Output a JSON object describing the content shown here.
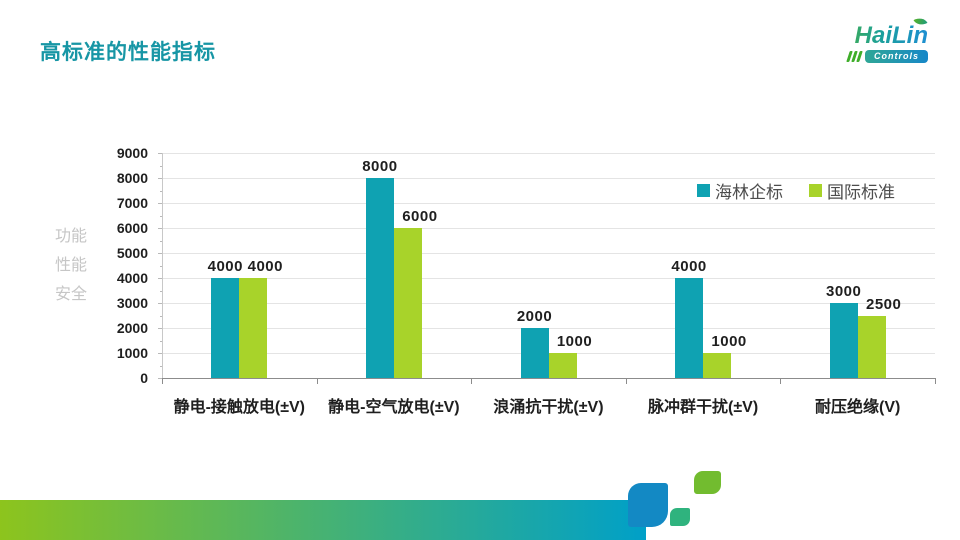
{
  "page": {
    "title": "高标准的性能指标"
  },
  "logo": {
    "name": "HaiLin",
    "sub": "Controls"
  },
  "chart_data": {
    "type": "bar",
    "title": "",
    "categories": [
      "静电-接触放电(±V)",
      "静电-空气放电(±V)",
      "浪涌抗干扰(±V)",
      "脉冲群干扰(±V)",
      "耐压绝缘(V)"
    ],
    "series": [
      {
        "name": "海林企标",
        "color": "#0FA2B2",
        "values": [
          4000,
          8000,
          2000,
          4000,
          3000
        ]
      },
      {
        "name": "国际标准",
        "color": "#A8D32A",
        "values": [
          4000,
          6000,
          1000,
          1000,
          2500
        ]
      }
    ],
    "ylabel_lines": [
      "功能",
      "性能",
      "安全"
    ],
    "ylim": [
      0,
      9000
    ],
    "ytick_step": 1000,
    "yticks": [
      0,
      1000,
      2000,
      3000,
      4000,
      5000,
      6000,
      7000,
      8000,
      9000
    ],
    "grid": true,
    "data_labels": true,
    "legend_position": "top-right"
  },
  "colors": {
    "title": "#1796A5",
    "grid": "#E4E4E4",
    "axis": "#8C8C8C",
    "label": "#1F1F1F",
    "legend_text": "#4D4D4D",
    "side_label": "#C6C6C6",
    "decor_bar_start": "#8DC41D",
    "decor_bar_end": "#00A0C8",
    "decor_tab": "#1389C4",
    "decor_leaf_small": "#2FB37E",
    "decor_leaf_green": "#72BC2F"
  }
}
